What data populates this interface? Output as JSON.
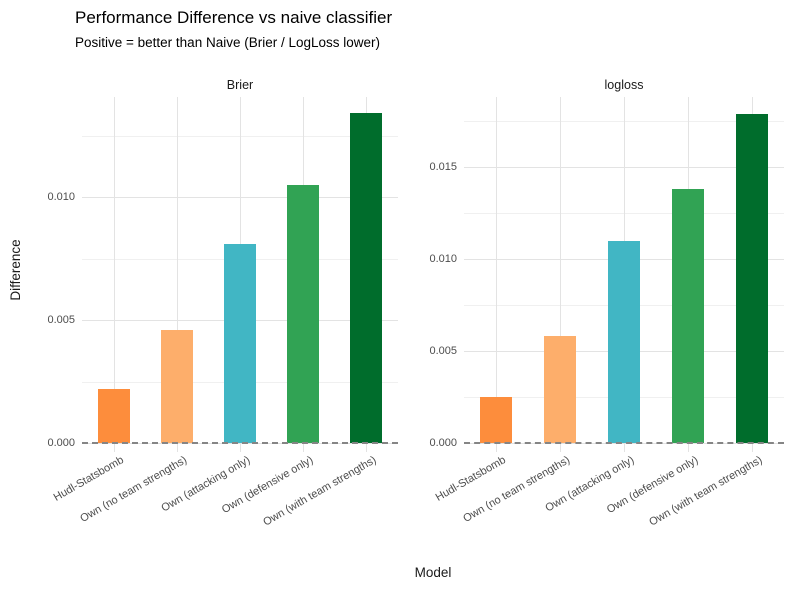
{
  "chart_data": {
    "type": "bar",
    "title": "Performance Difference vs naive classifier",
    "subtitle": "Positive = better than Naive (Brier / LogLoss lower)",
    "xlabel": "Model",
    "ylabel": "Difference",
    "categories": [
      "Hudl-Statsbomb",
      "Own (no team strengths)",
      "Own (attacking only)",
      "Own (defensive only)",
      "Own (with team strengths)"
    ],
    "bar_colors": [
      "#FD8D3C",
      "#FDAE6B",
      "#41B6C4",
      "#31A354",
      "#006D2C"
    ],
    "grid": {
      "major_color": "#e3e3e3",
      "minor_color": "#f0f0f0",
      "background": "#ffffff"
    },
    "zero_line": {
      "value": 0,
      "style": "dashed",
      "color": "#858585"
    },
    "legend": "none",
    "facets": [
      {
        "label": "Brier",
        "values": [
          0.0022,
          0.0046,
          0.0081,
          0.0105,
          0.0134
        ],
        "ylim": [
          0,
          0.01407
        ],
        "major_ticks": [
          0,
          0.005,
          0.01
        ],
        "minor_ticks": [
          0.0025,
          0.0075,
          0.0125
        ],
        "tick_labels": [
          "0.000",
          "0.005",
          "0.010"
        ]
      },
      {
        "label": "logloss",
        "values": [
          0.0025,
          0.0058,
          0.011,
          0.0138,
          0.0179
        ],
        "ylim": [
          0,
          0.0188
        ],
        "major_ticks": [
          0,
          0.005,
          0.01,
          0.015
        ],
        "minor_ticks": [
          0.0025,
          0.0075,
          0.0125,
          0.0175
        ],
        "tick_labels": [
          "0.000",
          "0.005",
          "0.010",
          "0.015"
        ]
      }
    ]
  }
}
